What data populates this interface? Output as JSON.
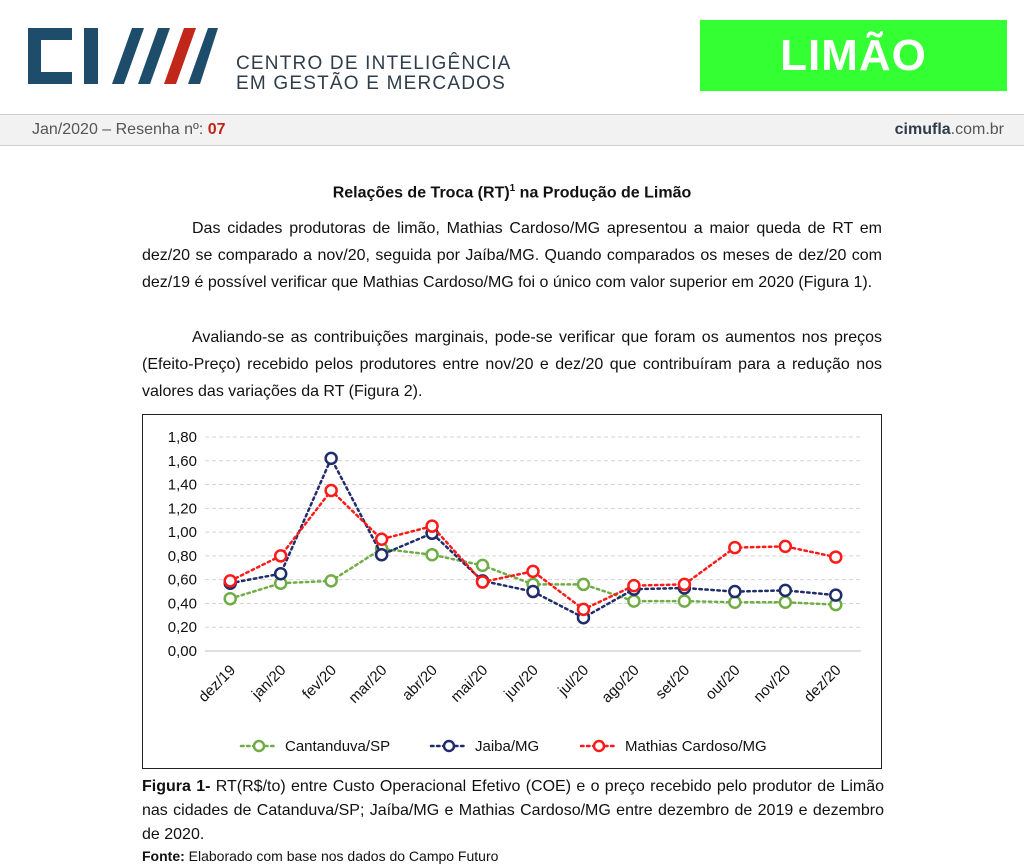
{
  "header": {
    "logo_text": "CIM",
    "org_line1": "CENTRO DE INTELIGÊNCIA",
    "org_line2": "EM GESTÃO E MERCADOS",
    "product": "LIMÃO",
    "issue_label": "Jan/2020 – Resenha nº:",
    "issue_number": "07",
    "site_bold": "cimufla",
    "site_rest": ".com.br"
  },
  "colors": {
    "logo_blue": "#1e4d6b",
    "logo_red": "#c0261a",
    "tag_green": "#33ff33"
  },
  "article": {
    "title": "Relações de Troca (RT)",
    "title_sup": "1",
    "title_rest": " na Produção de Limão",
    "paragraph1": "Das cidades produtoras de limão, Mathias Cardoso/MG apresentou a maior queda de RT em dez/20 se comparado a nov/20, seguida por Jaíba/MG. Quando comparados os meses de dez/20 com dez/19 é possível verificar que Mathias Cardoso/MG foi o único com valor superior em 2020 (Figura 1).",
    "paragraph2": "Avaliando-se as contribuições marginais, pode-se verificar que foram os aumentos nos preços (Efeito-Preço) recebido pelos produtores entre nov/20 e dez/20 que contribuíram para a redução nos valores das variações da RT (Figura 2).",
    "figure_label": "Figura 1-",
    "figure_caption": " RT(R$/to) entre Custo Operacional Efetivo (COE) e o preço recebido pelo produtor de Limão nas cidades de Catanduva/SP; Jaíba/MG e Mathias Cardoso/MG entre dezembro de 2019 e dezembro de 2020.",
    "source_label": "Fonte:",
    "source_text": " Elaborado com base nos dados do Campo Futuro"
  },
  "chart_data": {
    "type": "line",
    "categories": [
      "dez/19",
      "jan/20",
      "fev/20",
      "mar/20",
      "abr/20",
      "mai/20",
      "jun/20",
      "jul/20",
      "ago/20",
      "set/20",
      "out/20",
      "nov/20",
      "dez/20"
    ],
    "ylim": [
      0,
      1.8
    ],
    "yticks": [
      "0,00",
      "0,20",
      "0,40",
      "0,60",
      "0,80",
      "1,00",
      "1,20",
      "1,40",
      "1,60",
      "1,80"
    ],
    "grid": true,
    "legend_position": "bottom",
    "series": [
      {
        "name": "Cantanduva/SP",
        "color": "#70ad47",
        "values": [
          0.44,
          0.57,
          0.59,
          0.86,
          0.81,
          0.72,
          0.56,
          0.56,
          0.42,
          0.42,
          0.41,
          0.41,
          0.39
        ]
      },
      {
        "name": "Jaiba/MG",
        "color": "#1f2d6b",
        "values": [
          0.57,
          0.65,
          1.62,
          0.81,
          0.99,
          0.59,
          0.5,
          0.28,
          0.52,
          0.53,
          0.5,
          0.51,
          0.47
        ]
      },
      {
        "name": "Mathias Cardoso/MG",
        "color": "#ff1a1a",
        "values": [
          0.59,
          0.8,
          1.35,
          0.94,
          1.05,
          0.58,
          0.67,
          0.35,
          0.55,
          0.56,
          0.87,
          0.88,
          0.79
        ]
      }
    ]
  }
}
